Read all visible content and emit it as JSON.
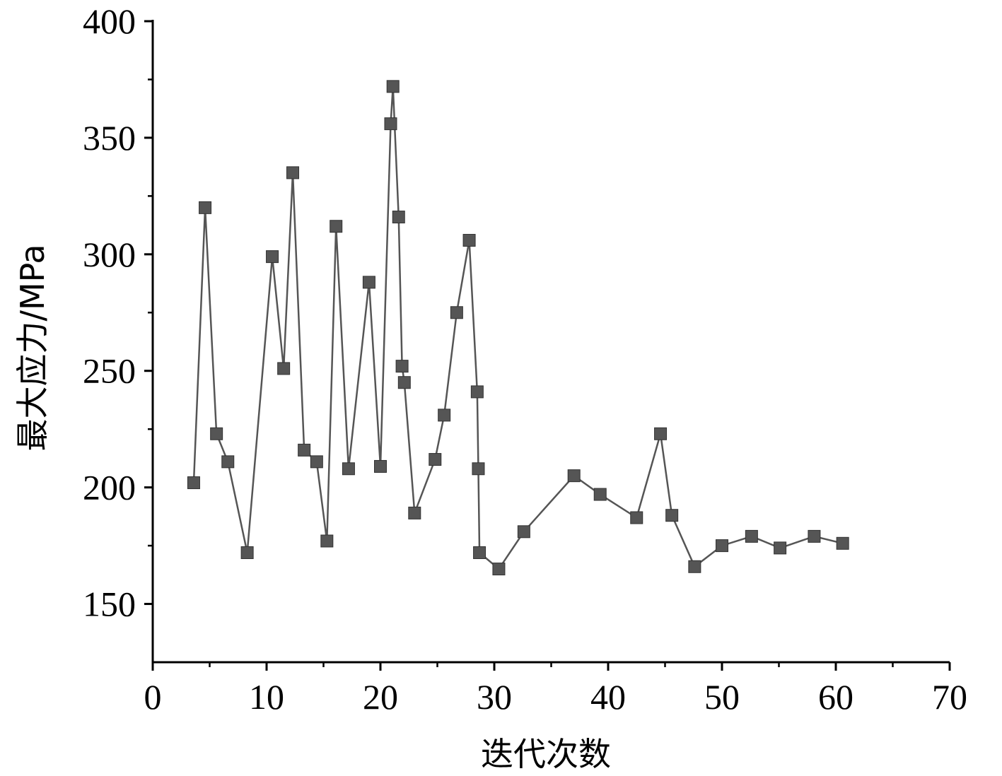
{
  "chart_data": {
    "type": "scatter",
    "xlabel": "迭代次数",
    "ylabel": "最大应力/MPa",
    "xlim": [
      0,
      70
    ],
    "ylim": [
      125,
      400
    ],
    "x_ticks": [
      "0",
      "10",
      "20",
      "30",
      "40",
      "50",
      "60",
      "70"
    ],
    "y_ticks": [
      "150",
      "200",
      "250",
      "300",
      "350",
      "400"
    ],
    "x_tick_values": [
      0,
      10,
      20,
      30,
      40,
      50,
      60,
      70
    ],
    "y_tick_values": [
      150,
      200,
      250,
      300,
      350,
      400
    ],
    "grid": false,
    "marker": "square",
    "line": true,
    "color": "#555555",
    "series": [
      {
        "points": [
          [
            3.6,
            202
          ],
          [
            4.6,
            320
          ],
          [
            5.6,
            223
          ],
          [
            6.6,
            211
          ],
          [
            8.3,
            172
          ],
          [
            10.5,
            299
          ],
          [
            11.5,
            251
          ],
          [
            12.3,
            335
          ],
          [
            13.3,
            216
          ],
          [
            14.4,
            211
          ],
          [
            15.3,
            177
          ],
          [
            16.1,
            312
          ],
          [
            17.2,
            208
          ],
          [
            19.0,
            288
          ],
          [
            20.0,
            209
          ],
          [
            20.9,
            356
          ],
          [
            21.1,
            372
          ],
          [
            21.6,
            316
          ],
          [
            21.9,
            252
          ],
          [
            22.1,
            245
          ],
          [
            23.0,
            189
          ],
          [
            24.8,
            212
          ],
          [
            25.6,
            231
          ],
          [
            26.7,
            275
          ],
          [
            27.8,
            306
          ],
          [
            28.5,
            241
          ],
          [
            28.6,
            208
          ],
          [
            28.7,
            172
          ],
          [
            30.4,
            165
          ],
          [
            32.6,
            181
          ],
          [
            37.0,
            205
          ],
          [
            39.3,
            197
          ],
          [
            42.5,
            187
          ],
          [
            44.6,
            223
          ],
          [
            45.6,
            188
          ],
          [
            47.6,
            166
          ],
          [
            50.0,
            175
          ],
          [
            52.6,
            179
          ],
          [
            55.1,
            174
          ],
          [
            58.1,
            179
          ],
          [
            60.6,
            176
          ]
        ]
      }
    ]
  }
}
